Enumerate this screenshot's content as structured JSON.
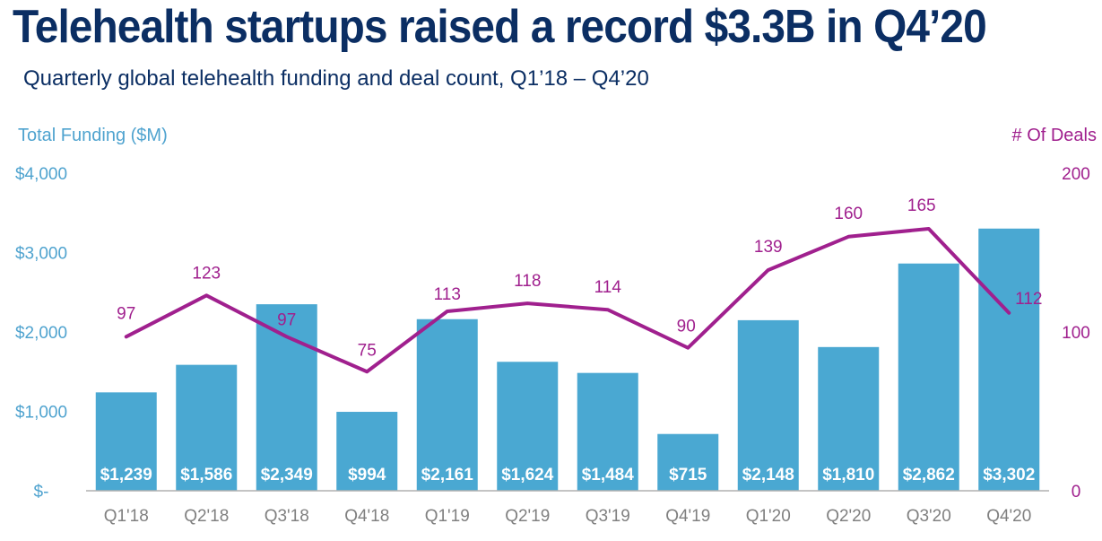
{
  "title": "Telehealth startups raised a record $3.3B in Q4’20",
  "subtitle": "Quarterly global telehealth funding and deal count, Q1’18 – Q4’20",
  "colors": {
    "bars": "#4aa8d2",
    "line": "#a0208e",
    "left_axis": "#4fa3cf",
    "right_axis": "#a0208e",
    "title": "#0b2e63"
  },
  "chart_data": {
    "type": "bar",
    "categories": [
      "Q1'18",
      "Q2'18",
      "Q3'18",
      "Q4'18",
      "Q1'19",
      "Q2'19",
      "Q3'19",
      "Q4'19",
      "Q1'20",
      "Q2'20",
      "Q3'20",
      "Q4'20"
    ],
    "series": [
      {
        "name": "Total Funding ($M)",
        "type": "bar",
        "axis": "left",
        "values": [
          1239,
          1586,
          2349,
          994,
          2161,
          1624,
          1484,
          715,
          2148,
          1810,
          2862,
          3302
        ],
        "labels": [
          "$1,239",
          "$1,586",
          "$2,349",
          "$994",
          "$2,161",
          "$1,624",
          "$1,484",
          "$715",
          "$2,148",
          "$1,810",
          "$2,862",
          "$3,302"
        ]
      },
      {
        "name": "# Of Deals",
        "type": "line",
        "axis": "right",
        "values": [
          97,
          123,
          97,
          75,
          113,
          118,
          114,
          90,
          139,
          160,
          165,
          112
        ]
      }
    ],
    "ylabel": "Total Funding ($M)",
    "ylabel_right": "# Of Deals",
    "ylim": [
      0,
      4000
    ],
    "ylim_right": [
      0,
      200
    ],
    "yticks": [
      "$-",
      "$1,000",
      "$2,000",
      "$3,000",
      "$4,000"
    ],
    "yticks_right": [
      "0",
      "100",
      "200"
    ],
    "grid": false
  }
}
